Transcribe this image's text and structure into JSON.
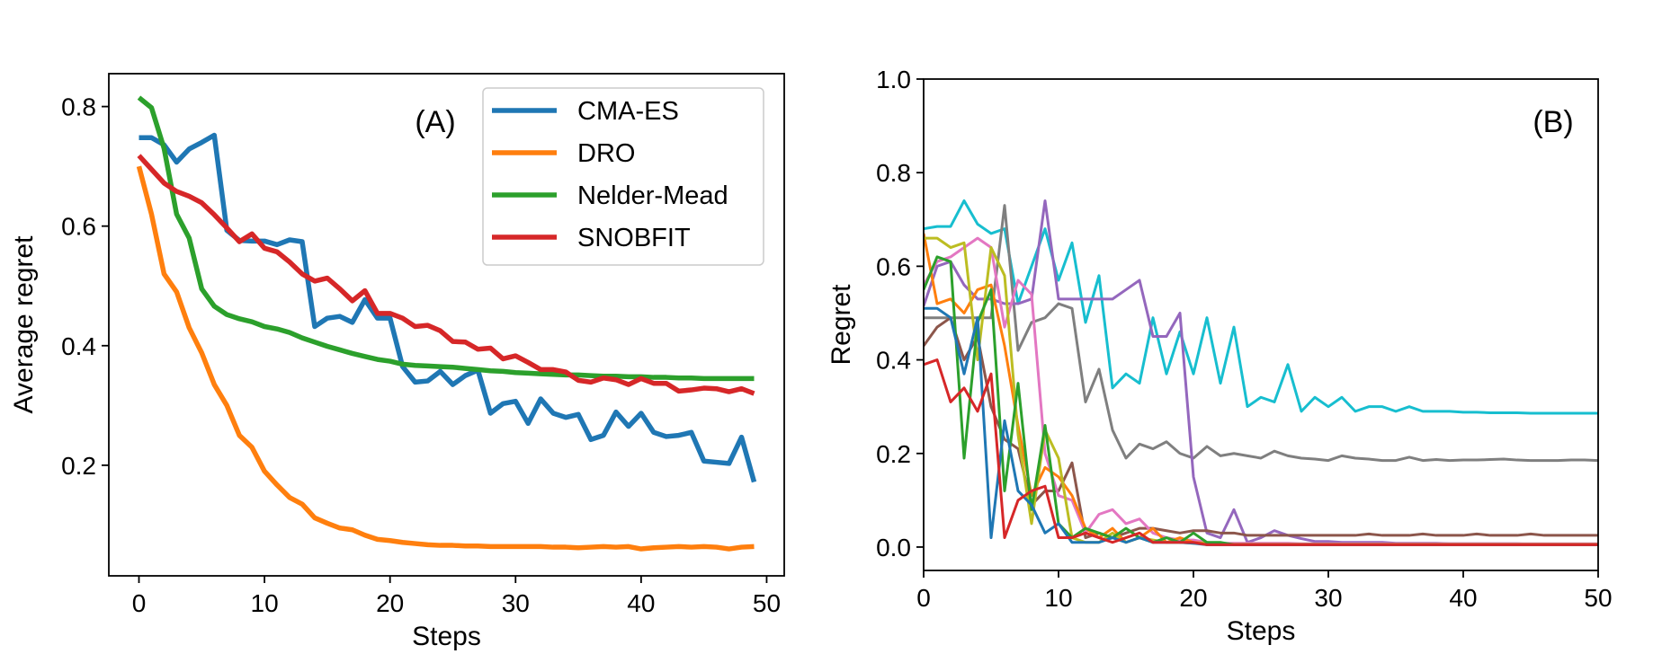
{
  "chart_data": [
    {
      "type": "line",
      "panel_label": "(A)",
      "title": "",
      "xlabel": "Steps",
      "ylabel": "Average regret",
      "xlim": [
        -2.4,
        51.4
      ],
      "ylim": [
        0.015,
        0.855
      ],
      "xticks": [
        0,
        10,
        20,
        30,
        40,
        50
      ],
      "yticks": [
        0.2,
        0.4,
        0.6,
        0.8
      ],
      "xtick_labels": [
        "0",
        "10",
        "20",
        "30",
        "40",
        "50"
      ],
      "ytick_labels": [
        "0.2",
        "0.4",
        "0.6",
        "0.8"
      ],
      "grid": false,
      "legend_position": "top-right",
      "x": [
        0,
        1,
        2,
        3,
        4,
        5,
        6,
        7,
        8,
        9,
        10,
        11,
        12,
        13,
        14,
        15,
        16,
        17,
        18,
        19,
        20,
        21,
        22,
        23,
        24,
        25,
        26,
        27,
        28,
        29,
        30,
        31,
        32,
        33,
        34,
        35,
        36,
        37,
        38,
        39,
        40,
        41,
        42,
        43,
        44,
        45,
        46,
        47,
        48,
        49
      ],
      "series": [
        {
          "name": "CMA-ES",
          "color": "#1f77b4",
          "values": [
            0.748,
            0.748,
            0.736,
            0.707,
            0.729,
            0.74,
            0.752,
            0.593,
            0.576,
            0.575,
            0.575,
            0.569,
            0.577,
            0.574,
            0.432,
            0.446,
            0.449,
            0.439,
            0.477,
            0.446,
            0.446,
            0.365,
            0.339,
            0.341,
            0.357,
            0.335,
            0.35,
            0.359,
            0.287,
            0.303,
            0.307,
            0.27,
            0.311,
            0.287,
            0.28,
            0.285,
            0.243,
            0.25,
            0.289,
            0.265,
            0.287,
            0.255,
            0.248,
            0.25,
            0.255,
            0.207,
            0.205,
            0.203,
            0.247,
            0.172
          ]
        },
        {
          "name": "DRO",
          "color": "#ff7f0e",
          "values": [
            0.7,
            0.62,
            0.52,
            0.49,
            0.43,
            0.388,
            0.335,
            0.3,
            0.25,
            0.23,
            0.19,
            0.167,
            0.146,
            0.135,
            0.112,
            0.103,
            0.095,
            0.092,
            0.083,
            0.076,
            0.074,
            0.071,
            0.069,
            0.067,
            0.066,
            0.066,
            0.065,
            0.065,
            0.064,
            0.064,
            0.064,
            0.064,
            0.064,
            0.063,
            0.063,
            0.062,
            0.063,
            0.064,
            0.063,
            0.064,
            0.06,
            0.062,
            0.063,
            0.064,
            0.063,
            0.064,
            0.063,
            0.06,
            0.063,
            0.064
          ]
        },
        {
          "name": "Nelder-Mead",
          "color": "#2ca02c",
          "values": [
            0.815,
            0.798,
            0.73,
            0.62,
            0.58,
            0.495,
            0.466,
            0.452,
            0.445,
            0.44,
            0.432,
            0.428,
            0.422,
            0.413,
            0.406,
            0.399,
            0.393,
            0.387,
            0.382,
            0.377,
            0.374,
            0.369,
            0.367,
            0.366,
            0.365,
            0.364,
            0.362,
            0.36,
            0.358,
            0.357,
            0.355,
            0.354,
            0.353,
            0.352,
            0.351,
            0.351,
            0.35,
            0.349,
            0.349,
            0.348,
            0.348,
            0.347,
            0.347,
            0.346,
            0.346,
            0.345,
            0.345,
            0.345,
            0.345,
            0.345
          ]
        },
        {
          "name": "SNOBFIT",
          "color": "#d62728",
          "values": [
            0.718,
            0.695,
            0.672,
            0.658,
            0.65,
            0.639,
            0.619,
            0.597,
            0.574,
            0.587,
            0.563,
            0.557,
            0.54,
            0.52,
            0.508,
            0.513,
            0.495,
            0.475,
            0.492,
            0.454,
            0.454,
            0.446,
            0.432,
            0.434,
            0.425,
            0.407,
            0.406,
            0.394,
            0.396,
            0.378,
            0.383,
            0.372,
            0.36,
            0.36,
            0.356,
            0.342,
            0.339,
            0.346,
            0.343,
            0.335,
            0.345,
            0.337,
            0.337,
            0.324,
            0.326,
            0.329,
            0.328,
            0.323,
            0.328,
            0.32
          ]
        }
      ]
    },
    {
      "type": "line",
      "panel_label": "(B)",
      "title": "",
      "xlabel": "Steps",
      "ylabel": "Regret",
      "xlim": [
        0,
        50
      ],
      "ylim": [
        -0.05,
        1.0
      ],
      "xticks": [
        0,
        10,
        20,
        30,
        40,
        50
      ],
      "yticks": [
        0.0,
        0.2,
        0.4,
        0.6,
        0.8,
        1.0
      ],
      "xtick_labels": [
        "0",
        "10",
        "20",
        "30",
        "40",
        "50"
      ],
      "ytick_labels": [
        "0.0",
        "0.2",
        "0.4",
        "0.6",
        "0.8",
        "1.0"
      ],
      "grid": false,
      "x": [
        0,
        1,
        2,
        3,
        4,
        5,
        6,
        7,
        8,
        9,
        10,
        11,
        12,
        13,
        14,
        15,
        16,
        17,
        18,
        19,
        20,
        21,
        22,
        23,
        24,
        25,
        26,
        27,
        28,
        29,
        30,
        31,
        32,
        33,
        34,
        35,
        36,
        37,
        38,
        39,
        40,
        41,
        42,
        43,
        44,
        45,
        46,
        47,
        48,
        49,
        50
      ],
      "series": [
        {
          "color": "#17becf",
          "values": [
            0.68,
            0.685,
            0.685,
            0.74,
            0.69,
            0.67,
            0.68,
            0.52,
            0.6,
            0.68,
            0.57,
            0.65,
            0.48,
            0.58,
            0.34,
            0.37,
            0.35,
            0.49,
            0.37,
            0.46,
            0.37,
            0.49,
            0.35,
            0.47,
            0.3,
            0.32,
            0.31,
            0.39,
            0.29,
            0.32,
            0.3,
            0.32,
            0.29,
            0.3,
            0.3,
            0.29,
            0.3,
            0.29,
            0.29,
            0.29,
            0.288,
            0.288,
            0.287,
            0.287,
            0.287,
            0.286,
            0.286,
            0.286,
            0.286,
            0.286,
            0.286
          ]
        },
        {
          "color": "#7f7f7f",
          "values": [
            0.49,
            0.49,
            0.49,
            0.49,
            0.49,
            0.49,
            0.73,
            0.42,
            0.48,
            0.49,
            0.52,
            0.51,
            0.31,
            0.38,
            0.25,
            0.19,
            0.22,
            0.21,
            0.225,
            0.2,
            0.19,
            0.215,
            0.195,
            0.2,
            0.195,
            0.19,
            0.205,
            0.195,
            0.19,
            0.188,
            0.185,
            0.195,
            0.19,
            0.188,
            0.185,
            0.185,
            0.192,
            0.185,
            0.187,
            0.185,
            0.186,
            0.186,
            0.187,
            0.188,
            0.186,
            0.185,
            0.185,
            0.185,
            0.186,
            0.186,
            0.185
          ]
        },
        {
          "color": "#9467bd",
          "values": [
            0.515,
            0.6,
            0.61,
            0.56,
            0.53,
            0.53,
            0.52,
            0.52,
            0.53,
            0.74,
            0.53,
            0.53,
            0.53,
            0.53,
            0.53,
            0.55,
            0.57,
            0.45,
            0.45,
            0.5,
            0.15,
            0.03,
            0.02,
            0.08,
            0.01,
            0.02,
            0.035,
            0.025,
            0.018,
            0.012,
            0.012,
            0.01,
            0.01,
            0.01,
            0.01,
            0.008,
            0.008,
            0.008,
            0.008,
            0.007,
            0.007,
            0.007,
            0.007,
            0.007,
            0.007,
            0.006,
            0.006,
            0.006,
            0.006,
            0.006,
            0.006
          ]
        },
        {
          "color": "#8c564b",
          "values": [
            0.43,
            0.47,
            0.49,
            0.4,
            0.45,
            0.3,
            0.23,
            0.21,
            0.09,
            0.12,
            0.12,
            0.18,
            0.02,
            0.03,
            0.02,
            0.03,
            0.04,
            0.04,
            0.035,
            0.03,
            0.035,
            0.035,
            0.03,
            0.03,
            0.025,
            0.025,
            0.025,
            0.025,
            0.025,
            0.025,
            0.025,
            0.025,
            0.025,
            0.028,
            0.025,
            0.025,
            0.025,
            0.028,
            0.025,
            0.025,
            0.025,
            0.028,
            0.025,
            0.025,
            0.025,
            0.028,
            0.025,
            0.025,
            0.025,
            0.025,
            0.025
          ]
        },
        {
          "color": "#e377c2",
          "values": [
            0.56,
            0.61,
            0.62,
            0.64,
            0.66,
            0.64,
            0.47,
            0.57,
            0.54,
            0.2,
            0.11,
            0.1,
            0.03,
            0.07,
            0.08,
            0.05,
            0.06,
            0.03,
            0.02,
            0.015,
            0.015,
            0.01,
            0.008,
            0.008,
            0.008,
            0.008,
            0.008,
            0.008,
            0.007,
            0.007,
            0.007,
            0.007,
            0.007,
            0.007,
            0.007,
            0.007,
            0.007,
            0.007,
            0.007,
            0.007,
            0.007,
            0.007,
            0.007,
            0.007,
            0.007,
            0.007,
            0.007,
            0.007,
            0.007,
            0.007,
            0.007
          ]
        },
        {
          "color": "#ff7f0e",
          "values": [
            0.67,
            0.52,
            0.53,
            0.5,
            0.55,
            0.56,
            0.43,
            0.26,
            0.11,
            0.17,
            0.15,
            0.11,
            0.04,
            0.02,
            0.04,
            0.01,
            0.02,
            0.04,
            0.01,
            0.02,
            0.01,
            0.008,
            0.008,
            0.006,
            0.006,
            0.006,
            0.006,
            0.006,
            0.006,
            0.006,
            0.006,
            0.006,
            0.006,
            0.006,
            0.006,
            0.006,
            0.006,
            0.006,
            0.006,
            0.006,
            0.006,
            0.006,
            0.006,
            0.006,
            0.006,
            0.006,
            0.006,
            0.006,
            0.006,
            0.006,
            0.006
          ]
        },
        {
          "color": "#bcbd22",
          "values": [
            0.66,
            0.66,
            0.64,
            0.65,
            0.4,
            0.64,
            0.58,
            0.24,
            0.05,
            0.25,
            0.19,
            0.02,
            0.01,
            0.01,
            0.03,
            0.01,
            0.02,
            0.015,
            0.01,
            0.01,
            0.008,
            0.008,
            0.008,
            0.005,
            0.005,
            0.005,
            0.005,
            0.005,
            0.005,
            0.005,
            0.005,
            0.005,
            0.005,
            0.005,
            0.005,
            0.005,
            0.005,
            0.005,
            0.005,
            0.005,
            0.005,
            0.005,
            0.005,
            0.005,
            0.005,
            0.005,
            0.005,
            0.005,
            0.005,
            0.005,
            0.005
          ]
        },
        {
          "color": "#2ca02c",
          "values": [
            0.55,
            0.62,
            0.61,
            0.19,
            0.48,
            0.55,
            0.12,
            0.35,
            0.08,
            0.26,
            0.05,
            0.02,
            0.04,
            0.03,
            0.02,
            0.04,
            0.02,
            0.01,
            0.02,
            0.01,
            0.03,
            0.01,
            0.01,
            0.005,
            0.005,
            0.005,
            0.005,
            0.005,
            0.005,
            0.005,
            0.005,
            0.005,
            0.005,
            0.005,
            0.005,
            0.005,
            0.005,
            0.005,
            0.005,
            0.005,
            0.005,
            0.005,
            0.005,
            0.005,
            0.005,
            0.005,
            0.005,
            0.005,
            0.005,
            0.005,
            0.005
          ]
        },
        {
          "color": "#1f77b4",
          "values": [
            0.51,
            0.51,
            0.49,
            0.37,
            0.49,
            0.02,
            0.27,
            0.12,
            0.09,
            0.03,
            0.05,
            0.01,
            0.01,
            0.01,
            0.02,
            0.01,
            0.02,
            0.01,
            0.01,
            0.01,
            0.008,
            0.005,
            0.005,
            0.005,
            0.005,
            0.005,
            0.005,
            0.005,
            0.005,
            0.005,
            0.005,
            0.005,
            0.005,
            0.005,
            0.005,
            0.005,
            0.005,
            0.005,
            0.005,
            0.005,
            0.005,
            0.005,
            0.005,
            0.005,
            0.005,
            0.005,
            0.005,
            0.005,
            0.005,
            0.005,
            0.005
          ]
        },
        {
          "color": "#d62728",
          "values": [
            0.39,
            0.4,
            0.31,
            0.34,
            0.29,
            0.37,
            0.02,
            0.1,
            0.12,
            0.13,
            0.02,
            0.02,
            0.03,
            0.02,
            0.01,
            0.02,
            0.03,
            0.01,
            0.01,
            0.01,
            0.01,
            0.005,
            0.005,
            0.005,
            0.005,
            0.005,
            0.005,
            0.005,
            0.005,
            0.005,
            0.005,
            0.005,
            0.005,
            0.005,
            0.005,
            0.005,
            0.005,
            0.005,
            0.005,
            0.005,
            0.005,
            0.005,
            0.005,
            0.005,
            0.005,
            0.005,
            0.005,
            0.005,
            0.005,
            0.005,
            0.005
          ]
        }
      ]
    }
  ]
}
